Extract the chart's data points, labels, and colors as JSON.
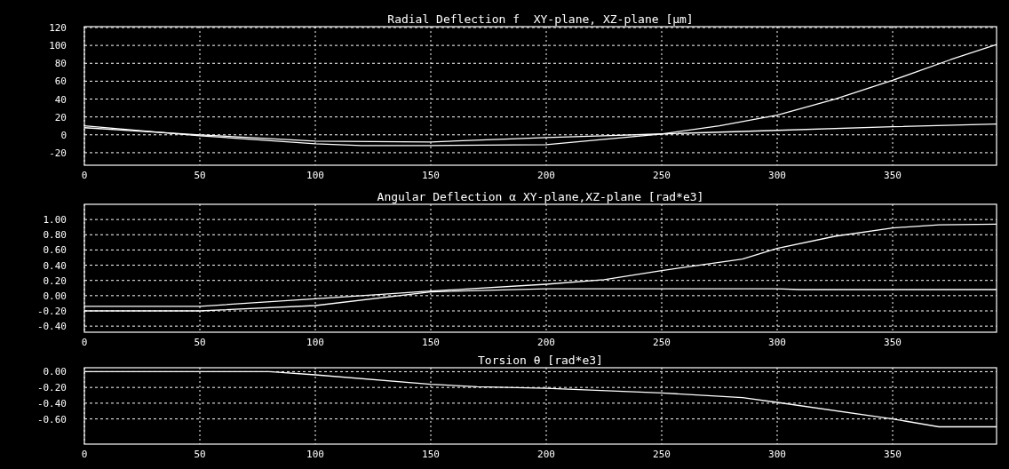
{
  "chart_data": [
    {
      "type": "line",
      "title": "Radial Deflection f  XY-plane, XZ-plane [µm]",
      "xlim": [
        0,
        395
      ],
      "xticks": [
        0,
        50,
        100,
        150,
        200,
        250,
        300,
        350
      ],
      "ylim": [
        -34,
        121
      ],
      "yticks": [
        -20,
        0,
        20,
        40,
        60,
        80,
        100,
        120
      ],
      "grid": true,
      "series": [
        {
          "color": "#ffffff",
          "x": [
            0,
            50,
            100,
            150,
            200,
            225,
            250,
            275,
            300,
            325,
            350,
            375,
            395
          ],
          "values": [
            8,
            0,
            -7,
            -8,
            -3,
            -1,
            1,
            10,
            22,
            40,
            61,
            84,
            101
          ]
        },
        {
          "color": "#ffffff",
          "x": [
            0,
            50,
            100,
            120,
            150,
            200,
            250,
            300,
            350,
            395
          ],
          "values": [
            10,
            -1,
            -10,
            -12,
            -12,
            -11,
            1,
            5,
            9,
            12
          ]
        }
      ]
    },
    {
      "type": "line",
      "title": "Angular Deflection α XY-plane,XZ-plane [rad*e3]",
      "xlim": [
        0,
        395
      ],
      "xticks": [
        0,
        50,
        100,
        150,
        200,
        250,
        300,
        350
      ],
      "ylim": [
        -0.48,
        1.2
      ],
      "yticks": [
        {
          "value": -0.4,
          "label": "-0.40"
        },
        {
          "value": -0.2,
          "label": "-0.20"
        },
        {
          "value": 0,
          "label": "0.00"
        },
        {
          "value": 0.2,
          "label": "0.20"
        },
        {
          "value": 0.4,
          "label": "0.40"
        },
        {
          "value": 0.6,
          "label": "0.60"
        },
        {
          "value": 0.8,
          "label": "0.80"
        },
        {
          "value": 1,
          "label": "1.00"
        }
      ],
      "grid": true,
      "series": [
        {
          "color": "#ffffff",
          "x": [
            0,
            50,
            100,
            150,
            200,
            225,
            250,
            285,
            300,
            325,
            350,
            370,
            395
          ],
          "values": [
            -0.14,
            -0.14,
            -0.04,
            0.06,
            0.15,
            0.21,
            0.33,
            0.48,
            0.62,
            0.78,
            0.89,
            0.93,
            0.94
          ]
        },
        {
          "color": "#ffffff",
          "x": [
            0,
            50,
            100,
            150,
            200,
            250,
            300,
            310,
            395
          ],
          "values": [
            -0.2,
            -0.2,
            -0.13,
            0.05,
            0.09,
            0.09,
            0.09,
            0.08,
            0.08
          ]
        }
      ]
    },
    {
      "type": "line",
      "title": "Torsion θ [rad*e3]",
      "xlim": [
        0,
        395
      ],
      "xticks": [
        0,
        50,
        100,
        150,
        200,
        250,
        300,
        350
      ],
      "ylim": [
        -0.92,
        0.05
      ],
      "yticks": [
        {
          "value": -0.6,
          "label": "-0.60"
        },
        {
          "value": -0.4,
          "label": "-0.40"
        },
        {
          "value": -0.2,
          "label": "-0.20"
        },
        {
          "value": 0,
          "label": "0.00"
        }
      ],
      "grid": true,
      "series": [
        {
          "color": "#ffffff",
          "x": [
            0,
            80,
            100,
            150,
            170,
            200,
            250,
            285,
            300,
            350,
            370,
            395
          ],
          "values": [
            0,
            0,
            -0.04,
            -0.16,
            -0.19,
            -0.21,
            -0.27,
            -0.33,
            -0.39,
            -0.6,
            -0.7,
            -0.7
          ]
        }
      ]
    }
  ]
}
